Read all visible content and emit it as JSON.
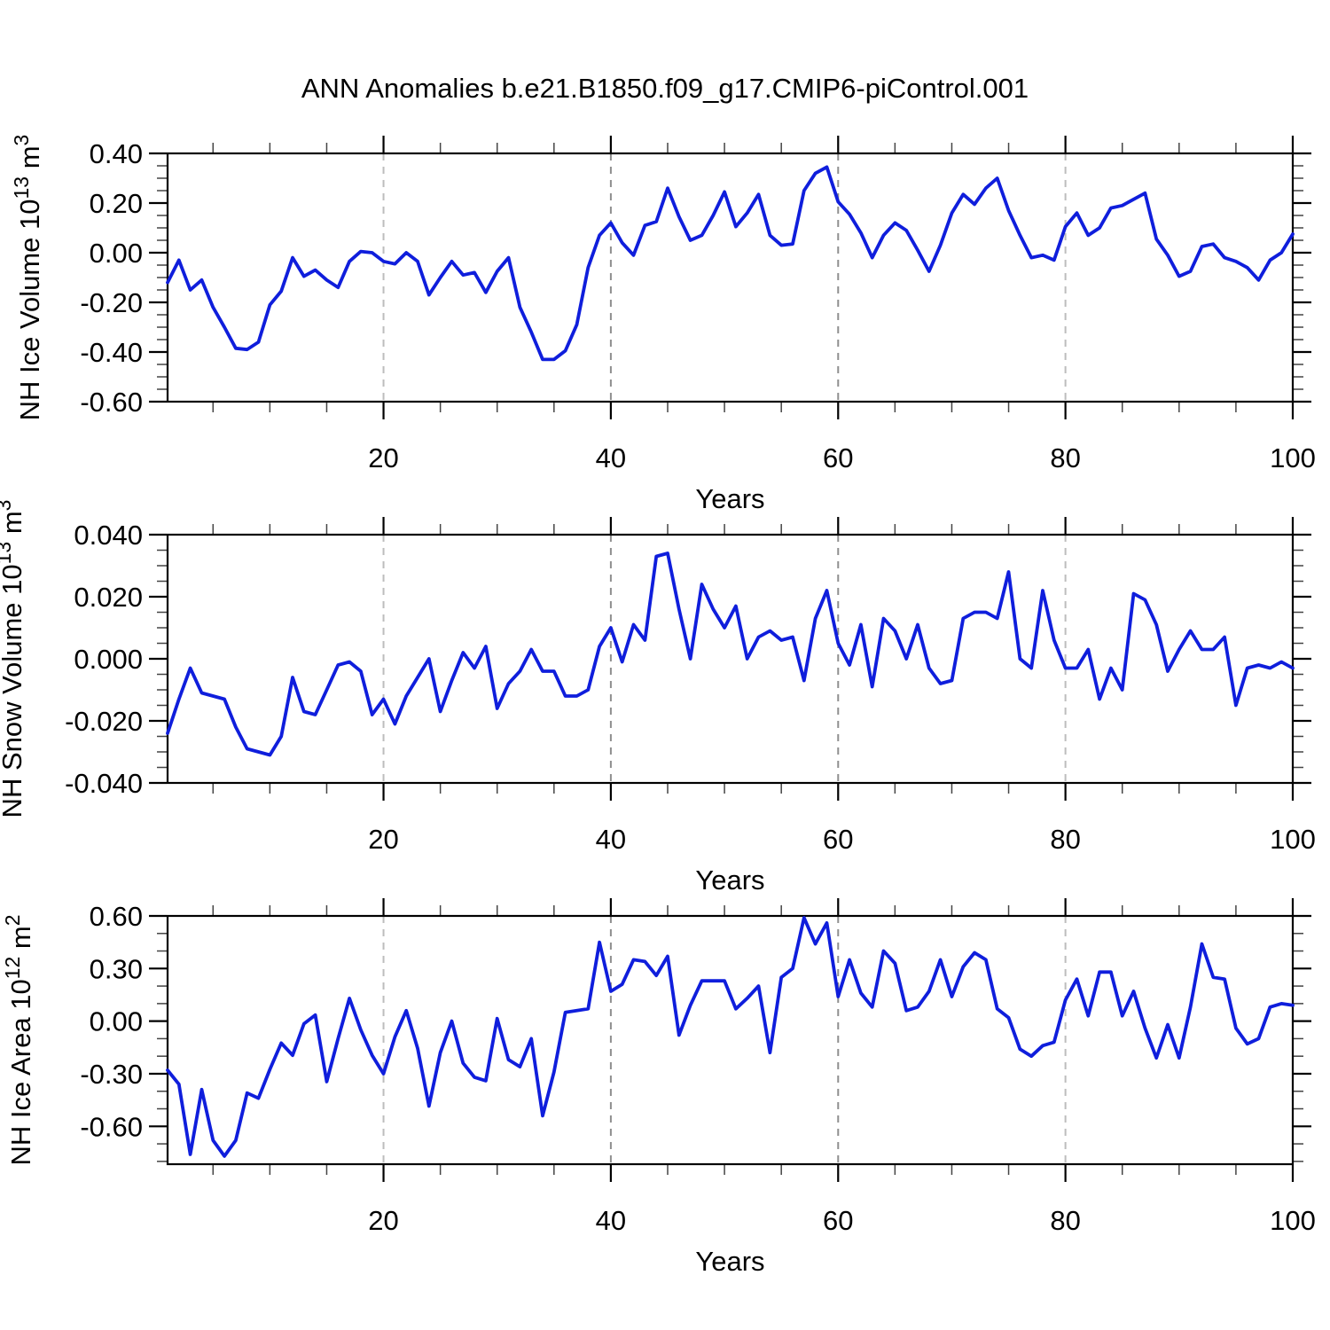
{
  "title": "ANN Anomalies b.e21.B1850.f09_g17.CMIP6-piControl.001",
  "style": {
    "line_color": "#0F1EDC",
    "grid_color_light": "#BDBDBD",
    "grid_color_dark": "#8F8F8F",
    "axis_color": "#000000"
  },
  "chart_data": [
    {
      "type": "line",
      "id": "nh-ice-volume",
      "ylabel": "NH Ice Volume 10^13 m^3",
      "ylabel_segments": [
        {
          "t": "NH Ice Volume 10"
        },
        {
          "t": "13",
          "sup": true
        },
        {
          "t": " m"
        },
        {
          "t": "3",
          "sup": true
        }
      ],
      "xlabel": "Years",
      "x_start": 1,
      "x_end": 100,
      "xticks": [
        20,
        40,
        60,
        80,
        100
      ],
      "xtick_labels": [
        "20",
        "40",
        "60",
        "80",
        "100"
      ],
      "x_minor_step": 5,
      "grid_x": [
        20,
        40,
        60,
        80
      ],
      "ylim": [
        -0.6,
        0.4
      ],
      "ytick_values": [
        0.4,
        0.2,
        0.0,
        -0.2,
        -0.4,
        -0.6
      ],
      "ytick_labels": [
        "0.40",
        "0.20",
        "0.00",
        "-0.20",
        "-0.40",
        "-0.60"
      ],
      "y_minor_step": 0.05,
      "values": [
        -0.12,
        -0.03,
        -0.15,
        -0.11,
        -0.22,
        -0.3,
        -0.385,
        -0.39,
        -0.36,
        -0.21,
        -0.155,
        -0.02,
        -0.095,
        -0.07,
        -0.11,
        -0.14,
        -0.035,
        0.005,
        0.0,
        -0.035,
        -0.045,
        0.0,
        -0.035,
        -0.17,
        -0.1,
        -0.035,
        -0.09,
        -0.08,
        -0.16,
        -0.075,
        -0.02,
        -0.22,
        -0.32,
        -0.43,
        -0.43,
        -0.395,
        -0.29,
        -0.06,
        0.07,
        0.12,
        0.04,
        -0.01,
        0.11,
        0.125,
        0.26,
        0.145,
        0.05,
        0.07,
        0.15,
        0.245,
        0.105,
        0.16,
        0.235,
        0.07,
        0.03,
        0.035,
        0.25,
        0.32,
        0.345,
        0.205,
        0.155,
        0.08,
        -0.02,
        0.07,
        0.12,
        0.09,
        0.01,
        -0.075,
        0.03,
        0.16,
        0.235,
        0.195,
        0.26,
        0.3,
        0.17,
        0.07,
        -0.02,
        -0.01,
        -0.03,
        0.105,
        0.16,
        0.07,
        0.1,
        0.18,
        0.19,
        0.215,
        0.24,
        0.055,
        -0.01,
        -0.095,
        -0.075,
        0.025,
        0.035,
        -0.02,
        -0.035,
        -0.06,
        -0.11,
        -0.03,
        0.0,
        0.075
      ]
    },
    {
      "type": "line",
      "id": "nh-snow-volume",
      "ylabel": "NH Snow Volume 10^13 m^3",
      "ylabel_segments": [
        {
          "t": "NH Snow Volume 10"
        },
        {
          "t": "13",
          "sup": true
        },
        {
          "t": " m"
        },
        {
          "t": "3",
          "sup": true
        }
      ],
      "xlabel": "Years",
      "x_start": 1,
      "x_end": 100,
      "xticks": [
        20,
        40,
        60,
        80,
        100
      ],
      "xtick_labels": [
        "20",
        "40",
        "60",
        "80",
        "100"
      ],
      "x_minor_step": 5,
      "grid_x": [
        20,
        40,
        60,
        80
      ],
      "ylim": [
        -0.04,
        0.04
      ],
      "ytick_values": [
        0.04,
        0.02,
        0.0,
        -0.02,
        -0.04
      ],
      "ytick_labels": [
        "0.040",
        "0.020",
        "0.000",
        "-0.020",
        "-0.040"
      ],
      "y_minor_step": 0.005,
      "values": [
        -0.024,
        -0.013,
        -0.003,
        -0.011,
        -0.012,
        -0.013,
        -0.022,
        -0.029,
        -0.03,
        -0.031,
        -0.025,
        -0.006,
        -0.017,
        -0.018,
        -0.01,
        -0.002,
        -0.001,
        -0.004,
        -0.018,
        -0.013,
        -0.021,
        -0.012,
        -0.006,
        0.0,
        -0.017,
        -0.007,
        0.002,
        -0.003,
        0.004,
        -0.016,
        -0.008,
        -0.004,
        0.003,
        -0.004,
        -0.004,
        -0.012,
        -0.012,
        -0.01,
        0.004,
        0.01,
        -0.001,
        0.011,
        0.006,
        0.033,
        0.034,
        0.016,
        0.0,
        0.024,
        0.016,
        0.01,
        0.017,
        0.0,
        0.007,
        0.009,
        0.006,
        0.007,
        -0.007,
        0.013,
        0.022,
        0.005,
        -0.002,
        0.011,
        -0.009,
        0.013,
        0.009,
        0.0,
        0.011,
        -0.003,
        -0.008,
        -0.007,
        0.013,
        0.015,
        0.015,
        0.013,
        0.028,
        0.0,
        -0.003,
        0.022,
        0.006,
        -0.003,
        -0.003,
        0.003,
        -0.013,
        -0.003,
        -0.01,
        0.021,
        0.019,
        0.011,
        -0.004,
        0.003,
        0.009,
        0.003,
        0.003,
        0.007,
        -0.015,
        -0.003,
        -0.002,
        -0.003,
        -0.001,
        -0.003
      ]
    },
    {
      "type": "line",
      "id": "nh-ice-area",
      "ylabel": "NH Ice Area 10^12 m^2",
      "ylabel_segments": [
        {
          "t": "NH Ice Area 10"
        },
        {
          "t": "12",
          "sup": true
        },
        {
          "t": " m"
        },
        {
          "t": "2",
          "sup": true
        }
      ],
      "xlabel": "Years",
      "x_start": 1,
      "x_end": 100,
      "xticks": [
        20,
        40,
        60,
        80,
        100
      ],
      "xtick_labels": [
        "20",
        "40",
        "60",
        "80",
        "100"
      ],
      "x_minor_step": 5,
      "grid_x": [
        20,
        40,
        60,
        80
      ],
      "ylim": [
        -0.816,
        0.6
      ],
      "ytick_values": [
        0.6,
        0.3,
        0.0,
        -0.3,
        -0.6
      ],
      "ytick_labels": [
        "0.60",
        "0.30",
        "0.00",
        "-0.30",
        "-0.60"
      ],
      "y_minor_step": 0.1,
      "values": [
        -0.28,
        -0.36,
        -0.76,
        -0.39,
        -0.68,
        -0.77,
        -0.68,
        -0.41,
        -0.44,
        -0.275,
        -0.125,
        -0.195,
        -0.015,
        0.035,
        -0.345,
        -0.1,
        0.13,
        -0.05,
        -0.195,
        -0.3,
        -0.09,
        0.06,
        -0.155,
        -0.485,
        -0.18,
        0.0,
        -0.24,
        -0.32,
        -0.34,
        0.015,
        -0.22,
        -0.26,
        -0.1,
        -0.54,
        -0.29,
        0.05,
        0.06,
        0.07,
        0.45,
        0.17,
        0.21,
        0.35,
        0.34,
        0.26,
        0.37,
        -0.08,
        0.09,
        0.23,
        0.23,
        0.23,
        0.07,
        0.13,
        0.2,
        -0.18,
        0.25,
        0.3,
        0.59,
        0.44,
        0.56,
        0.14,
        0.35,
        0.16,
        0.08,
        0.4,
        0.33,
        0.06,
        0.08,
        0.17,
        0.35,
        0.14,
        0.31,
        0.39,
        0.35,
        0.07,
        0.02,
        -0.16,
        -0.2,
        -0.14,
        -0.12,
        0.12,
        0.24,
        0.03,
        0.28,
        0.28,
        0.03,
        0.17,
        -0.04,
        -0.21,
        -0.02,
        -0.21,
        0.08,
        0.44,
        0.25,
        0.24,
        -0.04,
        -0.13,
        -0.1,
        0.08,
        0.1,
        0.09
      ]
    }
  ]
}
